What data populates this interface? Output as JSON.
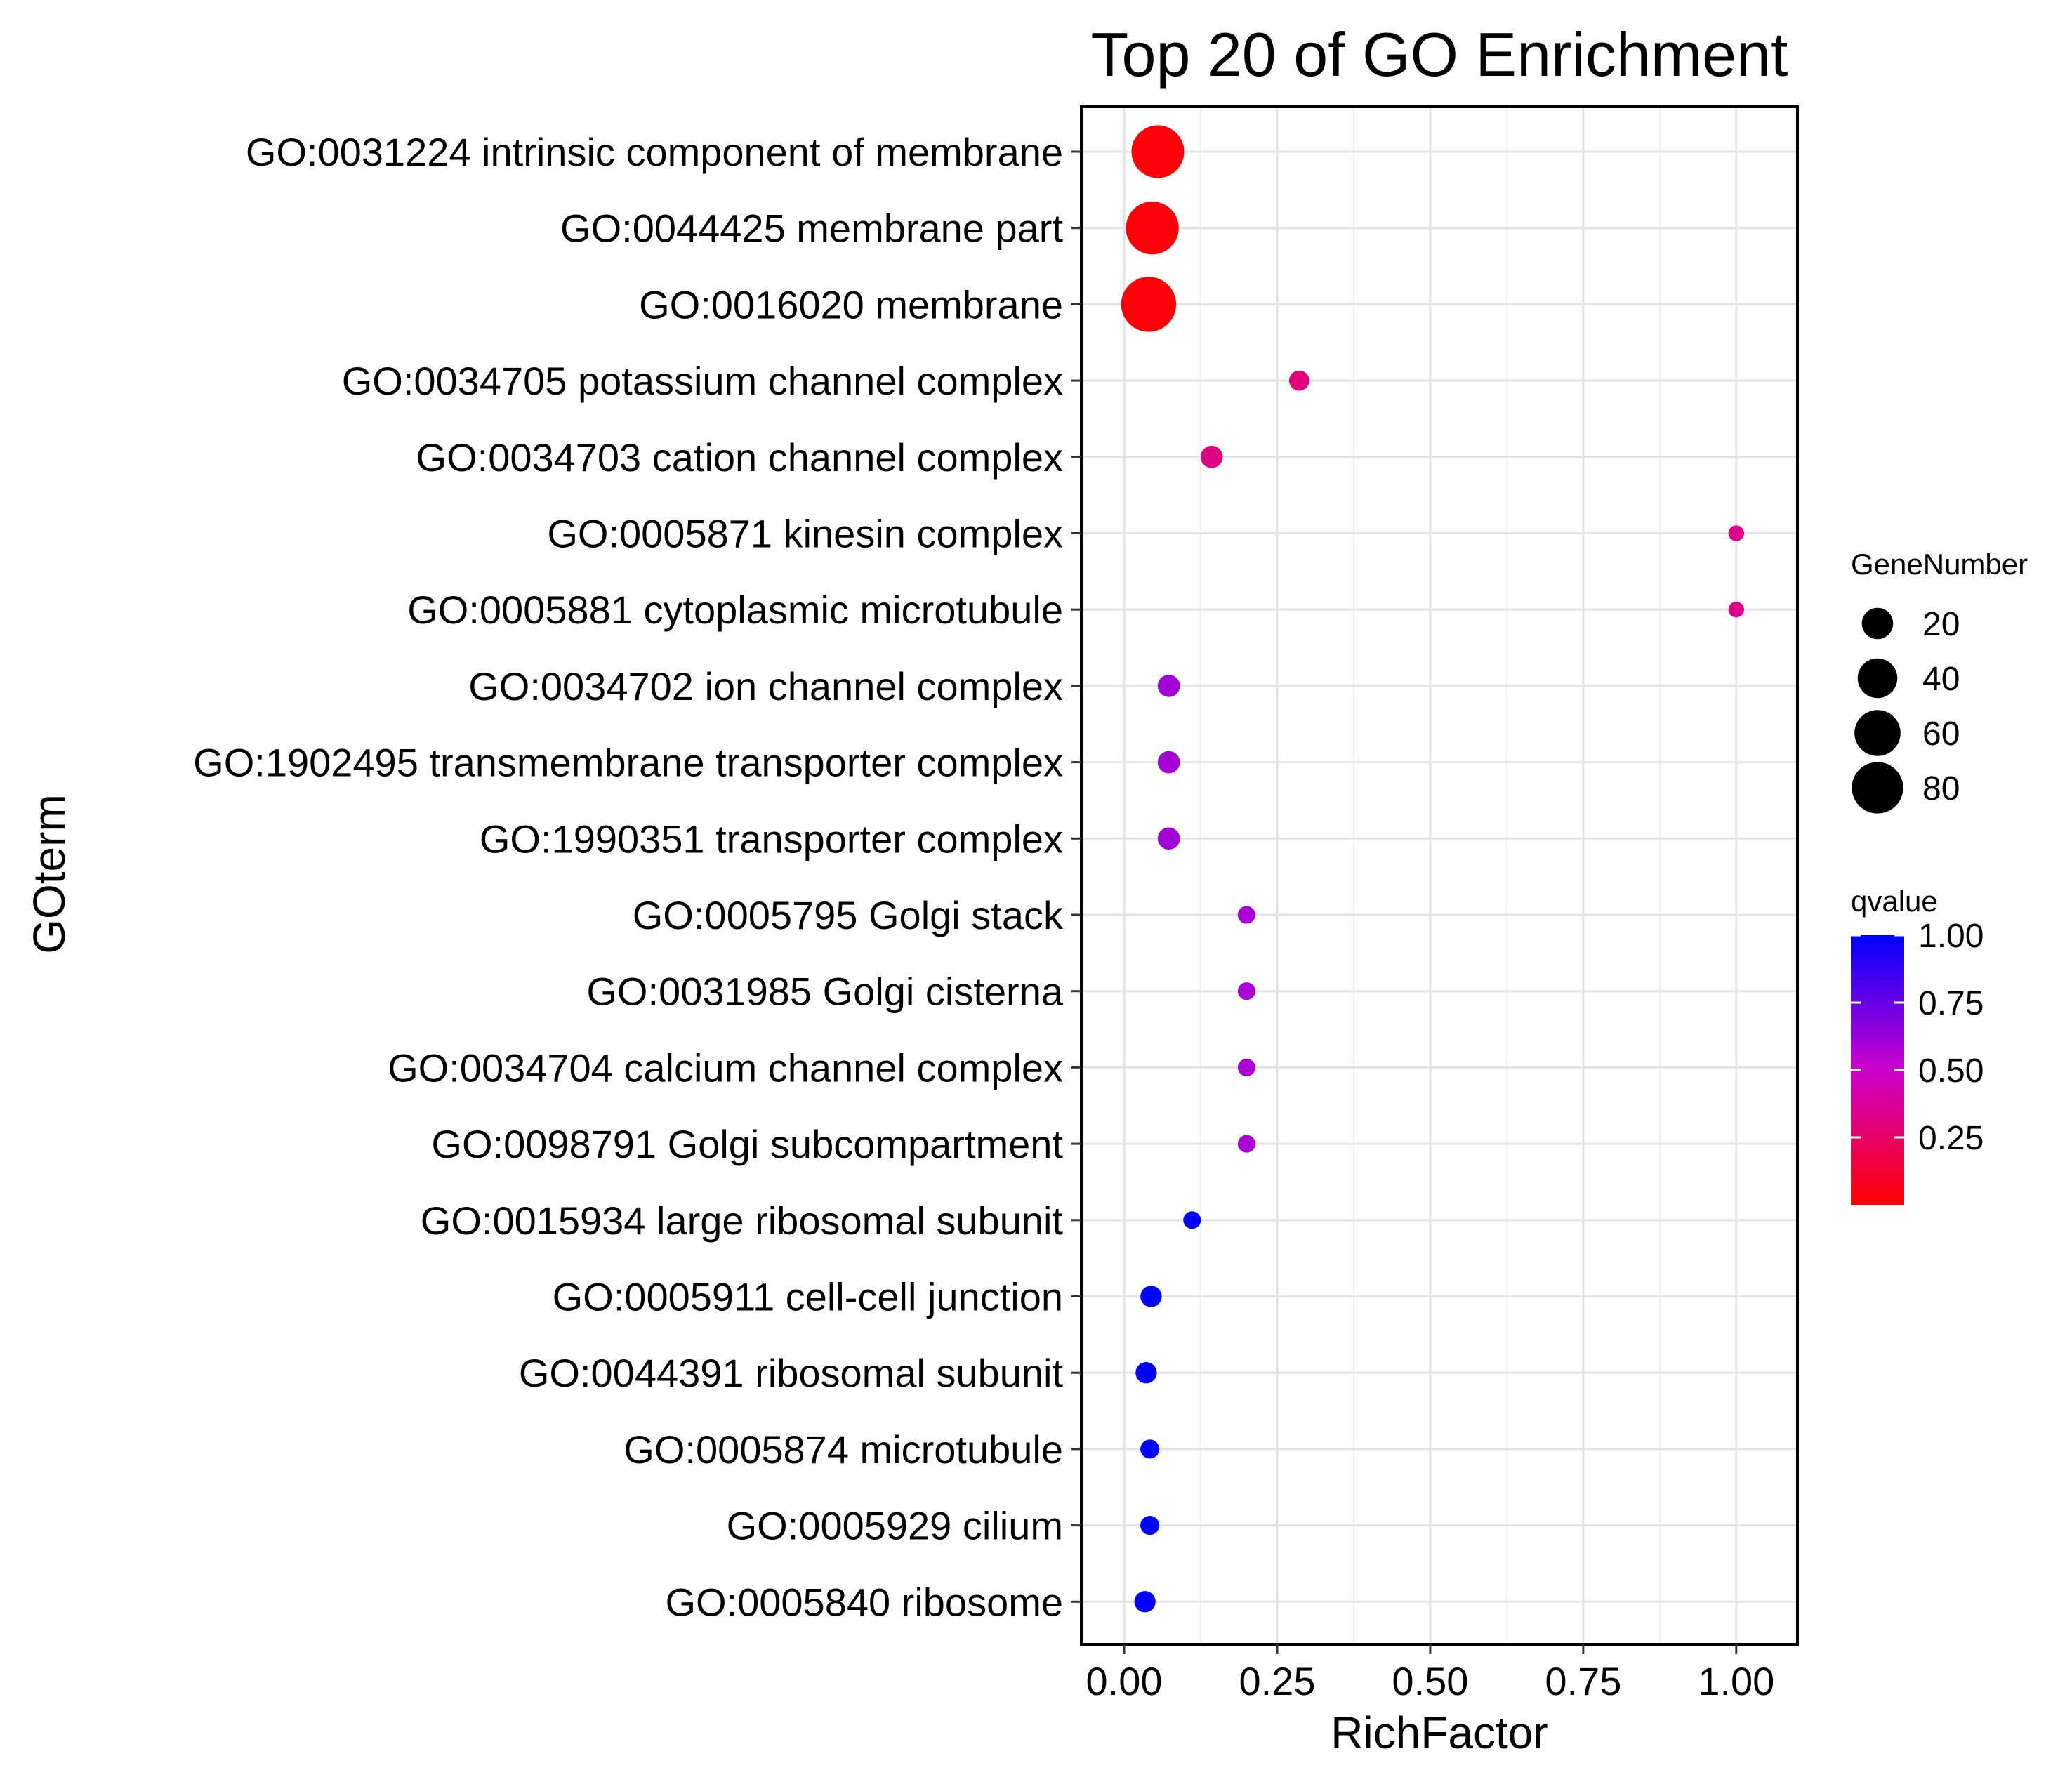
{
  "chart_data": {
    "type": "scatter",
    "title": "Top 20 of GO Enrichment",
    "xlabel": "RichFactor",
    "ylabel": "GOterm",
    "xlim": [
      -0.07,
      1.1
    ],
    "xticks": [
      0.0,
      0.25,
      0.5,
      0.75,
      1.0
    ],
    "xtick_labels": [
      "0.00",
      "0.25",
      "0.50",
      "0.75",
      "1.00"
    ],
    "grid": true,
    "legend_position": "right",
    "size_legend": {
      "title": "GeneNumber",
      "values": [
        20,
        40,
        60,
        80
      ],
      "labels": [
        "20",
        "40",
        "60",
        "80"
      ]
    },
    "color_legend": {
      "title": "qvalue",
      "low_color": "#ff0000",
      "mid_color": "#cc00cc",
      "high_color": "#0000ff",
      "breaks": [
        0.25,
        0.5,
        0.75,
        1.0
      ],
      "labels": [
        "0.25",
        "0.50",
        "0.75",
        "1.00"
      ],
      "range": [
        0.0,
        1.0
      ]
    },
    "points": [
      {
        "term": "GO:0031224 intrinsic component of membrane",
        "rich_factor": 0.055,
        "gene_number": 85,
        "qvalue": 0.02
      },
      {
        "term": "GO:0044425 membrane part",
        "rich_factor": 0.046,
        "gene_number": 86,
        "qvalue": 0.02
      },
      {
        "term": "GO:0016020 membrane",
        "rich_factor": 0.04,
        "gene_number": 95,
        "qvalue": 0.02
      },
      {
        "term": "GO:0034705 potassium channel complex",
        "rich_factor": 0.286,
        "gene_number": 4,
        "qvalue": 0.3
      },
      {
        "term": "GO:0034703 cation channel complex",
        "rich_factor": 0.143,
        "gene_number": 6,
        "qvalue": 0.32
      },
      {
        "term": "GO:0005871 kinesin complex",
        "rich_factor": 1.0,
        "gene_number": 1,
        "qvalue": 0.34
      },
      {
        "term": "GO:0005881 cytoplasmic microtubule",
        "rich_factor": 1.0,
        "gene_number": 1,
        "qvalue": 0.34
      },
      {
        "term": "GO:0034702 ion channel complex",
        "rich_factor": 0.073,
        "gene_number": 6,
        "qvalue": 0.6
      },
      {
        "term": "GO:1902495 transmembrane transporter complex",
        "rich_factor": 0.073,
        "gene_number": 6,
        "qvalue": 0.6
      },
      {
        "term": "GO:1990351 transporter complex",
        "rich_factor": 0.073,
        "gene_number": 6,
        "qvalue": 0.6
      },
      {
        "term": "GO:0005795 Golgi stack",
        "rich_factor": 0.2,
        "gene_number": 2,
        "qvalue": 0.58
      },
      {
        "term": "GO:0031985 Golgi cisterna",
        "rich_factor": 0.2,
        "gene_number": 2,
        "qvalue": 0.58
      },
      {
        "term": "GO:0034704 calcium channel complex",
        "rich_factor": 0.2,
        "gene_number": 2,
        "qvalue": 0.58
      },
      {
        "term": "GO:0098791 Golgi subcompartment",
        "rich_factor": 0.2,
        "gene_number": 2,
        "qvalue": 0.58
      },
      {
        "term": "GO:0015934 large ribosomal subunit",
        "rich_factor": 0.111,
        "gene_number": 2,
        "qvalue": 1.0
      },
      {
        "term": "GO:0005911 cell-cell junction",
        "rich_factor": 0.044,
        "gene_number": 5,
        "qvalue": 1.0
      },
      {
        "term": "GO:0044391 ribosomal subunit",
        "rich_factor": 0.036,
        "gene_number": 5,
        "qvalue": 1.0
      },
      {
        "term": "GO:0005874 microtubule",
        "rich_factor": 0.042,
        "gene_number": 3,
        "qvalue": 1.0
      },
      {
        "term": "GO:0005929 cilium",
        "rich_factor": 0.042,
        "gene_number": 3,
        "qvalue": 1.0
      },
      {
        "term": "GO:0005840 ribosome",
        "rich_factor": 0.034,
        "gene_number": 5,
        "qvalue": 1.0
      }
    ]
  }
}
